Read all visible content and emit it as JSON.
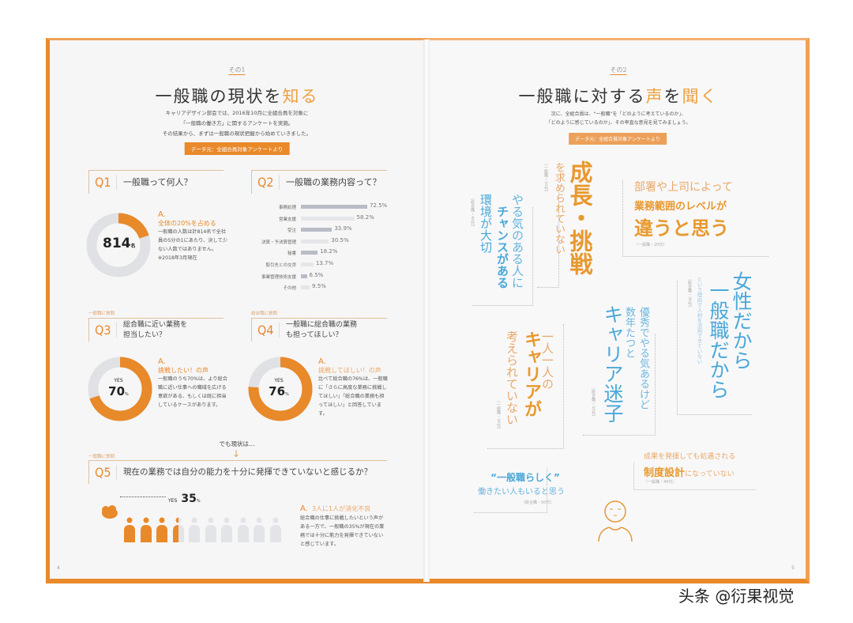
{
  "colors": {
    "accent": "#e8892a",
    "accent_light": "#eea040",
    "blue": "#4aa8d8",
    "grey": "#dfe1e5"
  },
  "left_page": {
    "section_label": "その1",
    "title_main": "一般職の現状を",
    "title_accent": "知る",
    "intro": [
      "キャリアデザイン部会では、2016年10月に全組合員を対象に",
      "「一般職の働き方」に関するアンケートを実施。",
      "その結果から、まずは一般職の現状把握から始めていきました。"
    ],
    "source_badge": "データ元：全組合員対象アンケートより",
    "q1": {
      "num": "Q1",
      "question": "一般職って何人？",
      "value": "814",
      "unit": "名",
      "answer_prefix": "A.",
      "answer_headline": "全体の20%を占める",
      "answer_body": "一般職の人数は計814名で全社員の5分の1にあたり、決して少ない人数ではありません。",
      "note": "※2018年3月現在"
    },
    "q2": {
      "num": "Q2",
      "question": "一般職の業務内容って？"
    },
    "q3": {
      "target": "一般職に質問",
      "num": "Q3",
      "question": "総合職に近い業務を担当したい？",
      "yes": "YES",
      "value": "70",
      "unit": "%",
      "answer_prefix": "A.",
      "answer_headline": "挑戦したい！の声",
      "answer_body": "一般職のうち70%は、より総合職に近い仕事への職域を広げる意欲がある、もしくは既に担当しているケースがあります。"
    },
    "q4": {
      "target": "総合職に質問",
      "num": "Q4",
      "question": "一般職に総合職の業務も担ってほしい？",
      "yes": "YES",
      "value": "76",
      "unit": "%",
      "answer_prefix": "A.",
      "answer_headline": "挑戦してほしい！の声",
      "answer_body": "比べて総合職の76%は、一般職に「さらに高度な業務に挑戦してほしい」「総合職の業務も担ってほしい」と回答しています。"
    },
    "transition": "でも現状は…",
    "q5": {
      "target": "一般職に質問",
      "num": "Q5",
      "question": "現在の業務では自分の能力を十分に発揮できていないと感じるか？",
      "yes": "YES",
      "value": "35",
      "unit": "%",
      "answer_prefix": "A.",
      "answer_headline": "3人に1人が消化不良",
      "answer_body": "総合職の仕事に挑戦したいという声がある一方で、一般職の35%が現在の業務では十分に能力を発揮できていないと感じています。"
    },
    "page_number": "4"
  },
  "chart_data": [
    {
      "type": "bar",
      "orientation": "horizontal",
      "categories": [
        "事務処理",
        "営業支援",
        "受注",
        "決算・予決算管理",
        "秘書",
        "取引先との交渉",
        "事業管理技術支援",
        "その他"
      ],
      "values": [
        72.5,
        58.2,
        33.9,
        30.5,
        18.2,
        13.7,
        6.5,
        9.5
      ],
      "value_labels": [
        "72.5%",
        "58.2%",
        "33.9%",
        "30.5%",
        "18.2%",
        "13.7%",
        "6.5%",
        "9.5%"
      ],
      "unit": "%"
    },
    {
      "type": "pie",
      "variant": "donut",
      "categories": [
        "一般職",
        "その他"
      ],
      "values": [
        20,
        80
      ]
    },
    {
      "type": "pie",
      "variant": "donut",
      "categories": [
        "YES",
        "NO"
      ],
      "values": [
        70,
        30
      ]
    },
    {
      "type": "pie",
      "variant": "donut",
      "categories": [
        "YES",
        "NO"
      ],
      "values": [
        76,
        24
      ]
    },
    {
      "type": "pictogram",
      "total": 10,
      "highlighted_fraction": 0.35
    }
  ],
  "right_page": {
    "section_label": "その2",
    "title_main": "一般職に対する",
    "title_accent1": "声",
    "title_mid": "を",
    "title_accent2": "聞く",
    "intro": [
      "次に、全組合員は、“一般職”を「どのように考えているのか」、",
      "「どのように感じているのか」、その率直な意見を見てみましょう。"
    ],
    "source_badge": "データ元：全組合員対象アンケートより",
    "voices": {
      "growth": {
        "big": "成長・挑戦",
        "rest": "を求められていない",
        "attr": "（一般職・20代）"
      },
      "chance": {
        "l1": "やる気のある人に",
        "l2": "チャンスがある",
        "l3": "環境が大切",
        "attr": "（総合職・40代）"
      },
      "scope": {
        "l1": "部署や上司によって",
        "l2": "業務範囲のレベルが",
        "l3": "違うと思う",
        "attr": "（一般職・20代）"
      },
      "woman": {
        "l1": "女性だから",
        "l2": "一般職だから",
        "l3": "という理由で人材を活用できていない",
        "attr": "（総合職・30代）"
      },
      "lost": {
        "l1": "優秀でやる気あるけど",
        "l2": "数年たつと",
        "l3": "キャリア迷子",
        "attr": "（総合職・30代）"
      },
      "career": {
        "l1": "一人一人の",
        "l2": "キャリアが",
        "l3": "考えられていない",
        "attr": "（一般職・30代）"
      },
      "system": {
        "l1": "成果を発揮しても処遇される",
        "l2a": "制度設計",
        "l2b": "になっていない",
        "attr": "（一般職・40代）"
      },
      "style": {
        "l1": "“一般職らしく”",
        "l2": "働きたい人もいると思う",
        "attr": "（総合職・50代）"
      }
    },
    "page_number": "5"
  },
  "watermark": "头条 @衍果视觉"
}
